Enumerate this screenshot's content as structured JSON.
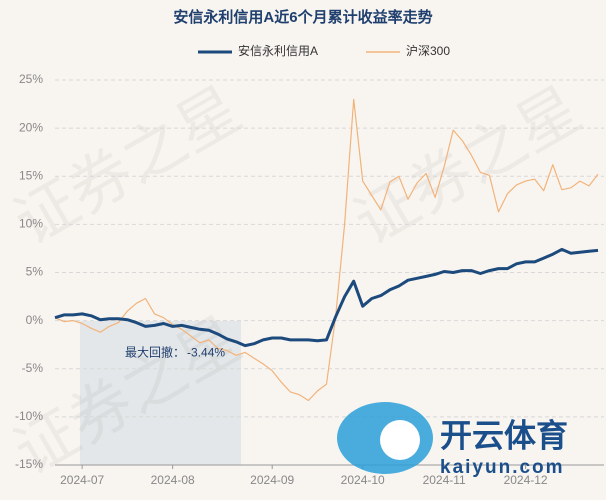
{
  "chart_data": {
    "type": "line",
    "title": "安信永利信用A近6个月累计收益率走势",
    "categories": [
      null,
      null,
      null,
      "2024-07",
      null,
      null,
      null,
      null,
      null,
      null,
      null,
      null,
      null,
      "2024-08",
      null,
      null,
      null,
      null,
      null,
      null,
      null,
      null,
      null,
      null,
      "2024-09",
      null,
      null,
      null,
      null,
      null,
      null,
      null,
      null,
      null,
      "2024-10",
      null,
      null,
      null,
      null,
      null,
      null,
      null,
      null,
      "2024-11",
      null,
      null,
      null,
      null,
      null,
      null,
      null,
      null,
      "2024-12",
      null,
      null,
      null,
      null,
      null,
      null,
      null,
      null
    ],
    "series": [
      {
        "name": "安信永利信用A",
        "color": "#1d4a7c",
        "values": [
          0.3,
          0.6,
          0.6,
          0.7,
          0.5,
          0.1,
          0.2,
          0.2,
          0.1,
          -0.2,
          -0.6,
          -0.5,
          -0.3,
          -0.6,
          -0.5,
          -0.7,
          -0.9,
          -1.0,
          -1.4,
          -1.9,
          -2.2,
          -2.6,
          -2.4,
          -2.0,
          -1.8,
          -1.8,
          -2.0,
          -2.0,
          -2.0,
          -2.1,
          -2.0,
          0.4,
          2.5,
          4.1,
          1.5,
          2.3,
          2.6,
          3.2,
          3.6,
          4.2,
          4.4,
          4.6,
          4.8,
          5.1,
          5.0,
          5.2,
          5.2,
          4.9,
          5.2,
          5.4,
          5.4,
          5.9,
          6.1,
          6.1,
          6.5,
          6.9,
          7.4,
          7.0,
          7.1,
          7.2,
          7.3
        ]
      },
      {
        "name": "沪深300",
        "color": "#f2b37a",
        "values": [
          0.3,
          -0.1,
          0.0,
          -0.3,
          -0.8,
          -1.2,
          -0.6,
          -0.2,
          1.0,
          1.8,
          2.3,
          0.7,
          0.3,
          -0.4,
          -0.9,
          -1.6,
          -2.3,
          -2.0,
          -2.9,
          -3.1,
          -3.6,
          -3.3,
          -3.9,
          -4.5,
          -5.2,
          -6.4,
          -7.4,
          -7.7,
          -8.3,
          -7.3,
          -6.6,
          0.4,
          10.0,
          23.0,
          14.5,
          13.0,
          11.5,
          14.4,
          15.0,
          12.6,
          14.3,
          15.3,
          12.8,
          16.0,
          19.8,
          18.7,
          17.2,
          15.4,
          15.1,
          11.3,
          13.2,
          14.1,
          14.5,
          14.7,
          13.5,
          16.2,
          13.6,
          13.8,
          14.5,
          14.0,
          15.2
        ]
      }
    ],
    "ylim": [
      -15,
      25
    ],
    "yticks": [
      {
        "value": -15,
        "label": "-15%"
      },
      {
        "value": -10,
        "label": "-10%"
      },
      {
        "value": -5,
        "label": "-5%"
      },
      {
        "value": 0,
        "label": "0%"
      },
      {
        "value": 5,
        "label": "5%"
      },
      {
        "value": 10,
        "label": "10%"
      },
      {
        "value": 15,
        "label": "15%"
      },
      {
        "value": 20,
        "label": "20%"
      },
      {
        "value": 25,
        "label": "25%"
      }
    ],
    "grid": true,
    "annotation": {
      "text": "最大回撤：",
      "value": -3.44,
      "label": "-3.44%"
    },
    "watermark": "证券之星",
    "logo": {
      "name": "开云体育",
      "url": "kaiyun.com"
    }
  }
}
